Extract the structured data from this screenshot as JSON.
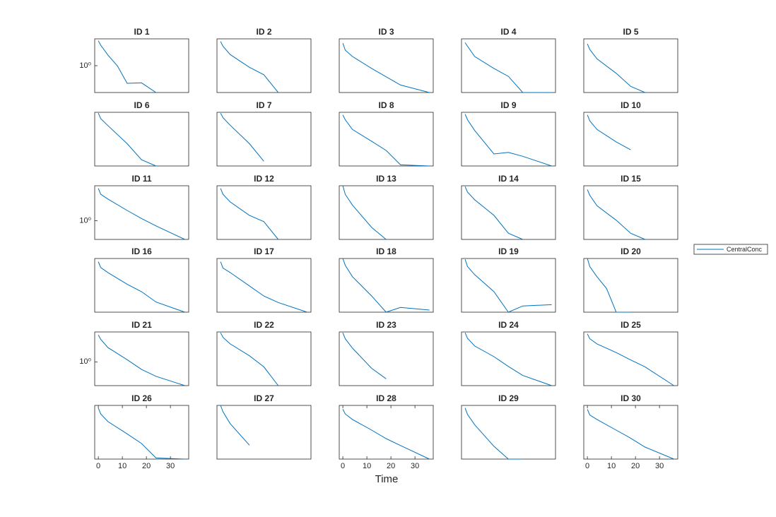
{
  "chart_data": {
    "type": "line",
    "xlabel": "Time",
    "yscale": "log",
    "xlim": [
      -1.5,
      37.6
    ],
    "color": "#0072bd",
    "legend": {
      "position": "right",
      "entries": [
        "CentralConc"
      ]
    },
    "panels": [
      {
        "title": "ID 1",
        "ylim": [
          0.1,
          10
        ],
        "yticks": [
          {
            "value": 1,
            "label": "10⁰"
          }
        ],
        "x": [
          0,
          1,
          4,
          8,
          12,
          18,
          24
        ],
        "values": [
          8.5,
          5.8,
          2.5,
          0.97,
          0.22,
          0.23,
          0.1
        ]
      },
      {
        "title": "ID 2",
        "ylim": [
          0.1,
          10
        ],
        "x": [
          0,
          1,
          4,
          12,
          18,
          24
        ],
        "values": [
          8,
          5.3,
          2.6,
          0.87,
          0.46,
          0.1
        ]
      },
      {
        "title": "ID 3",
        "ylim": [
          0.1,
          10
        ],
        "x": [
          0,
          1,
          4,
          12,
          24,
          36
        ],
        "values": [
          6.9,
          3.8,
          2.2,
          0.79,
          0.19,
          0.1
        ]
      },
      {
        "title": "ID 4",
        "ylim": [
          0.1,
          10
        ],
        "x": [
          0,
          1,
          4,
          12,
          18,
          24,
          36
        ],
        "values": [
          7.2,
          5.3,
          2.2,
          0.79,
          0.4,
          0.1,
          0.1
        ]
      },
      {
        "title": "ID 5",
        "ylim": [
          0.1,
          10
        ],
        "x": [
          0,
          1,
          4,
          12,
          18,
          24
        ],
        "values": [
          6.5,
          4,
          1.8,
          0.52,
          0.17,
          0.1
        ]
      },
      {
        "title": "ID 6",
        "ylim": [
          0.1,
          10
        ],
        "x": [
          0,
          1,
          4,
          12,
          18,
          24
        ],
        "values": [
          9.3,
          5.8,
          3.2,
          0.68,
          0.17,
          0.1
        ]
      },
      {
        "title": "ID 7",
        "ylim": [
          0.1,
          10
        ],
        "x": [
          0,
          1,
          4,
          12,
          18
        ],
        "values": [
          9.3,
          6.3,
          3.3,
          0.68,
          0.15
        ]
      },
      {
        "title": "ID 8",
        "ylim": [
          0.1,
          10
        ],
        "x": [
          0,
          1,
          4,
          12,
          18,
          24,
          36
        ],
        "values": [
          8,
          5.3,
          2.3,
          0.83,
          0.38,
          0.11,
          0.1
        ]
      },
      {
        "title": "ID 9",
        "ylim": [
          0.1,
          10
        ],
        "x": [
          0,
          1,
          4,
          12,
          18,
          24,
          36
        ],
        "values": [
          8.5,
          5.3,
          2.1,
          0.28,
          0.32,
          0.23,
          0.1
        ]
      },
      {
        "title": "ID 10",
        "ylim": [
          0.1,
          10
        ],
        "x": [
          0,
          1,
          4,
          12,
          18
        ],
        "values": [
          8,
          4.8,
          2.3,
          0.79,
          0.4
        ]
      },
      {
        "title": "ID 11",
        "ylim": [
          0.2,
          20
        ],
        "yticks": [
          {
            "value": 1,
            "label": "10⁰"
          }
        ],
        "x": [
          0,
          1,
          4,
          12,
          18,
          24,
          36
        ],
        "values": [
          16,
          9.6,
          6.4,
          2.4,
          1.2,
          0.64,
          0.2
        ]
      },
      {
        "title": "ID 12",
        "ylim": [
          0.1,
          10
        ],
        "x": [
          0,
          1,
          4,
          12,
          18,
          24
        ],
        "values": [
          8,
          4.8,
          2.5,
          0.79,
          0.46,
          0.1
        ]
      },
      {
        "title": "ID 13",
        "ylim": [
          0.1,
          10
        ],
        "x": [
          0,
          1,
          4,
          12,
          18
        ],
        "values": [
          10,
          4.8,
          1.9,
          0.28,
          0.1
        ]
      },
      {
        "title": "ID 14",
        "ylim": [
          0.1,
          10
        ],
        "x": [
          0,
          1,
          4,
          12,
          18,
          24
        ],
        "values": [
          9.3,
          5.8,
          3,
          0.79,
          0.17,
          0.1
        ]
      },
      {
        "title": "ID 15",
        "ylim": [
          0.1,
          10
        ],
        "x": [
          0,
          1,
          4,
          12,
          18,
          24
        ],
        "values": [
          7.2,
          4.4,
          1.8,
          0.52,
          0.17,
          0.1
        ]
      },
      {
        "title": "ID 16",
        "ylim": [
          0.1,
          10
        ],
        "x": [
          0,
          1,
          4,
          12,
          18,
          24,
          36
        ],
        "values": [
          7.6,
          4.6,
          3,
          1.1,
          0.58,
          0.24,
          0.1
        ]
      },
      {
        "title": "ID 17",
        "ylim": [
          0.1,
          10
        ],
        "x": [
          0,
          1,
          4,
          12,
          18,
          24,
          36
        ],
        "values": [
          7.6,
          4.4,
          3,
          0.95,
          0.4,
          0.23,
          0.1
        ]
      },
      {
        "title": "ID 18",
        "ylim": [
          0.1,
          10
        ],
        "x": [
          0,
          1,
          4,
          12,
          18,
          24,
          36
        ],
        "values": [
          10,
          5.6,
          2.1,
          0.4,
          0.1,
          0.15,
          0.12
        ]
      },
      {
        "title": "ID 19",
        "ylim": [
          0.1,
          10
        ],
        "x": [
          0,
          1,
          4,
          12,
          18,
          24,
          36
        ],
        "values": [
          9.3,
          5,
          2.5,
          0.58,
          0.1,
          0.17,
          0.19
        ]
      },
      {
        "title": "ID 20",
        "ylim": [
          0.1,
          10
        ],
        "x": [
          0,
          1,
          4,
          8,
          12,
          18
        ],
        "values": [
          10,
          5,
          2.1,
          0.76,
          0.1,
          0.1
        ]
      },
      {
        "title": "ID 21",
        "ylim": [
          0.13,
          13
        ],
        "yticks": [
          {
            "value": 1,
            "label": "10⁰"
          }
        ],
        "x": [
          0,
          1,
          4,
          12,
          18,
          24,
          36
        ],
        "values": [
          10,
          6.9,
          3.4,
          1.2,
          0.52,
          0.29,
          0.13
        ]
      },
      {
        "title": "ID 22",
        "ylim": [
          0.1,
          10
        ],
        "x": [
          0,
          1,
          4,
          12,
          18,
          24
        ],
        "values": [
          9.3,
          6.3,
          3.6,
          1.3,
          0.5,
          0.1
        ]
      },
      {
        "title": "ID 23",
        "ylim": [
          0.1,
          10
        ],
        "x": [
          0,
          1,
          4,
          12,
          18
        ],
        "values": [
          9.3,
          5.6,
          2.5,
          0.44,
          0.18
        ]
      },
      {
        "title": "ID 24",
        "ylim": [
          0.1,
          10
        ],
        "x": [
          0,
          1,
          4,
          12,
          18,
          24,
          36
        ],
        "values": [
          9.3,
          5.8,
          3,
          1.2,
          0.52,
          0.24,
          0.1
        ]
      },
      {
        "title": "ID 25",
        "ylim": [
          0.1,
          10
        ],
        "x": [
          0,
          1,
          4,
          12,
          18,
          24,
          36
        ],
        "values": [
          8.5,
          5.6,
          3.6,
          1.7,
          0.91,
          0.5,
          0.1
        ]
      },
      {
        "title": "ID 26",
        "ylim": [
          0.1,
          10
        ],
        "xticks": [
          0,
          10,
          20,
          30
        ],
        "x": [
          0,
          1,
          4,
          12,
          18,
          24,
          36
        ],
        "values": [
          8,
          4.8,
          2.5,
          0.87,
          0.38,
          0.11,
          0.1
        ]
      },
      {
        "title": "ID 27",
        "ylim": [
          0.1,
          10
        ],
        "x": [
          0,
          1,
          4,
          12
        ],
        "values": [
          10,
          5.8,
          2.1,
          0.33
        ]
      },
      {
        "title": "ID 28",
        "ylim": [
          0.1,
          10
        ],
        "xticks": [
          0,
          10,
          20,
          30
        ],
        "x": [
          0,
          1,
          4,
          12,
          18,
          24,
          36
        ],
        "values": [
          7.2,
          4.8,
          3,
          1.2,
          0.58,
          0.32,
          0.1
        ]
      },
      {
        "title": "ID 29",
        "ylim": [
          0.1,
          10
        ],
        "x": [
          0,
          1,
          4,
          12,
          18,
          24
        ],
        "values": [
          8,
          4.6,
          1.9,
          0.3,
          0.1,
          0.1
        ]
      },
      {
        "title": "ID 30",
        "ylim": [
          0.1,
          10
        ],
        "xticks": [
          0,
          10,
          20,
          30
        ],
        "x": [
          0,
          1,
          4,
          12,
          18,
          24,
          36
        ],
        "values": [
          7.2,
          4.4,
          3,
          1.2,
          0.6,
          0.28,
          0.1
        ]
      }
    ]
  }
}
